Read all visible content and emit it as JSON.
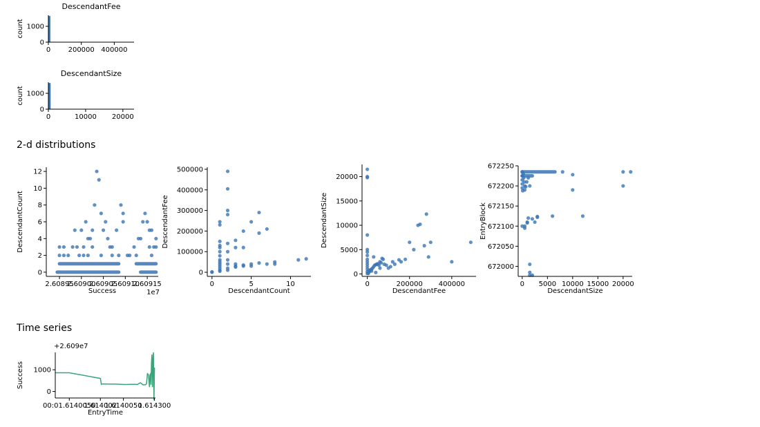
{
  "sections": {
    "two_d": "2-d distributions",
    "time_series": "Time series"
  },
  "colors": {
    "blue": "#3a74b4",
    "green": "#3aa57a"
  },
  "chart_data": [
    {
      "id": "hist1",
      "type": "bar",
      "title": "DescendantFee",
      "xlabel": "",
      "ylabel": "count",
      "xlim": [
        0,
        520000
      ],
      "ylim": [
        0,
        1700
      ],
      "xticks": [
        {
          "v": 0,
          "label": "0"
        },
        {
          "v": 200000,
          "label": "200000"
        },
        {
          "v": 400000,
          "label": "400000"
        }
      ],
      "yticks": [
        {
          "v": 0,
          "label": "0"
        },
        {
          "v": 1000,
          "label": "1000"
        }
      ],
      "bins": [
        {
          "x0": 0,
          "x1": 12000,
          "count": 1650
        },
        {
          "x0": 12000,
          "x1": 24000,
          "count": 15
        },
        {
          "x0": 24000,
          "x1": 36000,
          "count": 4
        }
      ]
    },
    {
      "id": "hist2",
      "type": "bar",
      "title": "DescendantSize",
      "xlabel": "",
      "ylabel": "count",
      "xlim": [
        0,
        23000
      ],
      "ylim": [
        0,
        1700
      ],
      "xticks": [
        {
          "v": 0,
          "label": "0"
        },
        {
          "v": 10000,
          "label": "10000"
        },
        {
          "v": 20000,
          "label": "20000"
        }
      ],
      "yticks": [
        {
          "v": 0,
          "label": "0"
        },
        {
          "v": 1000,
          "label": "1000"
        }
      ],
      "bins": [
        {
          "x0": 0,
          "x1": 600,
          "count": 1650
        },
        {
          "x0": 600,
          "x1": 1200,
          "count": 20
        }
      ]
    },
    {
      "id": "sc1",
      "type": "scatter",
      "xlabel": "Success",
      "ylabel": "DescendantCount",
      "offset_text": "1e7",
      "xlim": [
        26089200,
        26091750
      ],
      "ylim": [
        -0.5,
        12.5
      ],
      "xticks": [
        {
          "v": 26089500,
          "label": "2.60895"
        },
        {
          "v": 26090000,
          "label": "2.60900"
        },
        {
          "v": 26090500,
          "label": "2.60905"
        },
        {
          "v": 26091000,
          "label": "2.60910"
        },
        {
          "v": 26091500,
          "label": "2.60915"
        }
      ],
      "yticks": [
        {
          "v": 0,
          "label": "0"
        },
        {
          "v": 2,
          "label": "2"
        },
        {
          "v": 4,
          "label": "4"
        },
        {
          "v": 6,
          "label": "6"
        },
        {
          "v": 8,
          "label": "8"
        },
        {
          "v": 10,
          "label": "10"
        },
        {
          "v": 12,
          "label": "12"
        }
      ],
      "points": [
        [
          26089500,
          3
        ],
        [
          26089500,
          2
        ],
        [
          26089600,
          2
        ],
        [
          26089700,
          2
        ],
        [
          26089850,
          5
        ],
        [
          26089950,
          2
        ],
        [
          26090000,
          5
        ],
        [
          26090050,
          3
        ],
        [
          26090100,
          6
        ],
        [
          26090150,
          4
        ],
        [
          26090200,
          4
        ],
        [
          26090250,
          5
        ],
        [
          26090300,
          8
        ],
        [
          26090350,
          12
        ],
        [
          26090400,
          11
        ],
        [
          26090450,
          7
        ],
        [
          26090500,
          5
        ],
        [
          26090550,
          6
        ],
        [
          26090600,
          4
        ],
        [
          26090700,
          3
        ],
        [
          26090800,
          5
        ],
        [
          26090900,
          8
        ],
        [
          26090950,
          6
        ],
        [
          26090950,
          7
        ],
        [
          26091050,
          2
        ],
        [
          26091200,
          3
        ],
        [
          26091250,
          2
        ],
        [
          26091300,
          4
        ],
        [
          26091350,
          4
        ],
        [
          26091400,
          6
        ],
        [
          26091450,
          7
        ],
        [
          26091500,
          6
        ],
        [
          26091550,
          5
        ],
        [
          26091600,
          5
        ],
        [
          26091700,
          4
        ],
        [
          26091700,
          3
        ],
        [
          26089600,
          3
        ],
        [
          26089900,
          3
        ],
        [
          26090250,
          3
        ],
        [
          26090650,
          3
        ],
        [
          26091650,
          3
        ],
        [
          26091550,
          3
        ],
        [
          26090150,
          2
        ],
        [
          26090450,
          2
        ],
        [
          26090850,
          2
        ],
        [
          26091100,
          2
        ],
        [
          26091600,
          2
        ],
        [
          26090050,
          2
        ],
        [
          26089800,
          3
        ],
        [
          26090700,
          2
        ]
      ],
      "bands": [
        {
          "y": 0,
          "segments": [
            [
              26089450,
              26090850
            ],
            [
              26091350,
              26091700
            ]
          ]
        },
        {
          "y": 1,
          "segments": [
            [
              26089500,
              26090850
            ],
            [
              26091250,
              26091700
            ]
          ]
        }
      ]
    },
    {
      "id": "sc2",
      "type": "scatter",
      "xlabel": "DescendantCount",
      "ylabel": "DescendantFee",
      "xlim": [
        -0.6,
        12.6
      ],
      "ylim": [
        -20000,
        510000
      ],
      "xticks": [
        {
          "v": 0,
          "label": "0"
        },
        {
          "v": 5,
          "label": "5"
        },
        {
          "v": 10,
          "label": "10"
        }
      ],
      "yticks": [
        {
          "v": 0,
          "label": "0"
        },
        {
          "v": 100000,
          "label": "100000"
        },
        {
          "v": 200000,
          "label": "200000"
        },
        {
          "v": 300000,
          "label": "300000"
        },
        {
          "v": 400000,
          "label": "400000"
        },
        {
          "v": 500000,
          "label": "500000"
        }
      ],
      "points": [
        [
          0,
          0
        ],
        [
          0,
          2000
        ],
        [
          1,
          245000
        ],
        [
          1,
          230000
        ],
        [
          1,
          150000
        ],
        [
          1,
          130000
        ],
        [
          1,
          120000
        ],
        [
          1,
          100000
        ],
        [
          1,
          80000
        ],
        [
          1,
          60000
        ],
        [
          1,
          50000
        ],
        [
          1,
          40000
        ],
        [
          1,
          30000
        ],
        [
          1,
          20000
        ],
        [
          1,
          10000
        ],
        [
          1,
          5000
        ],
        [
          2,
          490000
        ],
        [
          2,
          405000
        ],
        [
          2,
          300000
        ],
        [
          2,
          280000
        ],
        [
          2,
          140000
        ],
        [
          2,
          100000
        ],
        [
          2,
          60000
        ],
        [
          2,
          40000
        ],
        [
          2,
          20000
        ],
        [
          2,
          10000
        ],
        [
          3,
          155000
        ],
        [
          3,
          120000
        ],
        [
          3,
          40000
        ],
        [
          3,
          30000
        ],
        [
          3,
          25000
        ],
        [
          4,
          200000
        ],
        [
          4,
          120000
        ],
        [
          4,
          35000
        ],
        [
          4,
          30000
        ],
        [
          5,
          245000
        ],
        [
          5,
          40000
        ],
        [
          5,
          30000
        ],
        [
          6,
          290000
        ],
        [
          6,
          190000
        ],
        [
          6,
          45000
        ],
        [
          7,
          210000
        ],
        [
          7,
          40000
        ],
        [
          8,
          50000
        ],
        [
          8,
          40000
        ],
        [
          11,
          60000
        ],
        [
          12,
          65000
        ]
      ]
    },
    {
      "id": "sc3",
      "type": "scatter",
      "xlabel": "DescendantFee",
      "ylabel": "DescendantSize",
      "xlim": [
        -25000,
        515000
      ],
      "ylim": [
        -500,
        22500
      ],
      "xticks": [
        {
          "v": 0,
          "label": "0"
        },
        {
          "v": 200000,
          "label": "200000"
        },
        {
          "v": 400000,
          "label": "400000"
        }
      ],
      "yticks": [
        {
          "v": 0,
          "label": "0"
        },
        {
          "v": 5000,
          "label": "5000"
        },
        {
          "v": 10000,
          "label": "10000"
        },
        {
          "v": 15000,
          "label": "15000"
        },
        {
          "v": 20000,
          "label": "20000"
        }
      ],
      "points": [
        [
          0,
          21500
        ],
        [
          0,
          20000
        ],
        [
          0,
          19800
        ],
        [
          0,
          8000
        ],
        [
          0,
          5000
        ],
        [
          0,
          4500
        ],
        [
          0,
          3800
        ],
        [
          0,
          3000
        ],
        [
          0,
          2500
        ],
        [
          0,
          2000
        ],
        [
          0,
          1500
        ],
        [
          0,
          1000
        ],
        [
          0,
          500
        ],
        [
          0,
          100
        ],
        [
          5000,
          300
        ],
        [
          10000,
          500
        ],
        [
          15000,
          800
        ],
        [
          20000,
          1000
        ],
        [
          25000,
          1200
        ],
        [
          30000,
          1500
        ],
        [
          35000,
          1800
        ],
        [
          40000,
          1900
        ],
        [
          45000,
          2000
        ],
        [
          50000,
          2100
        ],
        [
          55000,
          1800
        ],
        [
          60000,
          2500
        ],
        [
          65000,
          2300
        ],
        [
          70000,
          3200
        ],
        [
          75000,
          3000
        ],
        [
          80000,
          2000
        ],
        [
          90000,
          1800
        ],
        [
          100000,
          1200
        ],
        [
          110000,
          1500
        ],
        [
          120000,
          2500
        ],
        [
          130000,
          2000
        ],
        [
          150000,
          2900
        ],
        [
          160000,
          2500
        ],
        [
          180000,
          3000
        ],
        [
          200000,
          6500
        ],
        [
          220000,
          5000
        ],
        [
          240000,
          10000
        ],
        [
          250000,
          10200
        ],
        [
          270000,
          5800
        ],
        [
          280000,
          12300
        ],
        [
          290000,
          3500
        ],
        [
          300000,
          6500
        ],
        [
          400000,
          2500
        ],
        [
          490000,
          6500
        ],
        [
          30000,
          3500
        ],
        [
          10000,
          800
        ],
        [
          20000,
          600
        ],
        [
          40000,
          300
        ],
        [
          60000,
          1200
        ],
        [
          5000,
          100
        ]
      ]
    },
    {
      "id": "sc4",
      "type": "scatter",
      "xlabel": "DescendantSize",
      "ylabel": "EntryBlock",
      "xlim": [
        -800,
        21800
      ],
      "ylim": [
        671975,
        672250
      ],
      "xticks": [
        {
          "v": 0,
          "label": "0"
        },
        {
          "v": 5000,
          "label": "5000"
        },
        {
          "v": 10000,
          "label": "10000"
        },
        {
          "v": 15000,
          "label": "15000"
        },
        {
          "v": 20000,
          "label": "20000"
        }
      ],
      "yticks": [
        {
          "v": 672000,
          "label": "672000"
        },
        {
          "v": 672050,
          "label": "672050"
        },
        {
          "v": 672100,
          "label": "672100"
        },
        {
          "v": 672150,
          "label": "672150"
        },
        {
          "v": 672200,
          "label": "672200"
        },
        {
          "v": 672250,
          "label": "672250"
        }
      ],
      "points": [
        [
          0,
          672235
        ],
        [
          0,
          672225
        ],
        [
          0,
          672215
        ],
        [
          0,
          672205
        ],
        [
          0,
          672195
        ],
        [
          100,
          672188
        ],
        [
          200,
          672230
        ],
        [
          300,
          672220
        ],
        [
          400,
          672210
        ],
        [
          500,
          672200
        ],
        [
          500,
          672190
        ],
        [
          700,
          672198
        ],
        [
          900,
          672210
        ],
        [
          1200,
          672220
        ],
        [
          1500,
          672200
        ],
        [
          8000,
          672235
        ],
        [
          10000,
          672228
        ],
        [
          10000,
          672190
        ],
        [
          12000,
          672125
        ],
        [
          20000,
          672235
        ],
        [
          21500,
          672235
        ],
        [
          20000,
          672200
        ],
        [
          0,
          672100
        ],
        [
          500,
          672095
        ],
        [
          1000,
          672108
        ],
        [
          1200,
          672120
        ],
        [
          2000,
          672118
        ],
        [
          2500,
          672110
        ],
        [
          3000,
          672122
        ],
        [
          6000,
          672125
        ],
        [
          1500,
          672005
        ],
        [
          1500,
          671985
        ],
        [
          2000,
          671978
        ],
        [
          1500,
          671978
        ],
        [
          500,
          672100
        ],
        [
          1000,
          672110
        ],
        [
          3000,
          672124
        ]
      ],
      "bands": [
        {
          "y": 672235,
          "segments": [
            [
              0,
              6500
            ]
          ]
        },
        {
          "y": 672225,
          "segments": [
            [
              0,
              2000
            ]
          ]
        }
      ]
    },
    {
      "id": "ts1",
      "type": "line",
      "xlabel": "EntryTime",
      "ylabel": "Success",
      "offset_text": "+2.609e7",
      "xlim": [
        0,
        100
      ],
      "ylim": [
        -300,
        1800
      ],
      "xticks": [
        {
          "v": 14,
          "label": "00:01.6140050"
        },
        {
          "v": 45,
          "label": "1.614002"
        },
        {
          "v": 68,
          "label": "1.6140050"
        },
        {
          "v": 99,
          "label": "1.614300"
        }
      ],
      "yticks": [
        {
          "v": 0,
          "label": "0"
        },
        {
          "v": 1000,
          "label": "1000"
        }
      ],
      "series": [
        {
          "x": [
            0,
            14,
            45,
            46,
            47,
            55,
            60,
            65,
            70,
            75,
            80,
            82,
            84,
            85,
            87,
            88,
            90,
            91,
            92,
            93,
            94,
            94.5,
            95,
            95.5,
            96,
            96.5,
            97,
            97.5,
            98,
            98.5,
            99
          ],
          "y": [
            860,
            860,
            600,
            330,
            350,
            340,
            340,
            330,
            320,
            330,
            330,
            320,
            380,
            400,
            320,
            300,
            310,
            350,
            820,
            780,
            200,
            750,
            800,
            300,
            1300,
            1700,
            200,
            1500,
            1800,
            -400,
            1100
          ]
        }
      ]
    }
  ]
}
